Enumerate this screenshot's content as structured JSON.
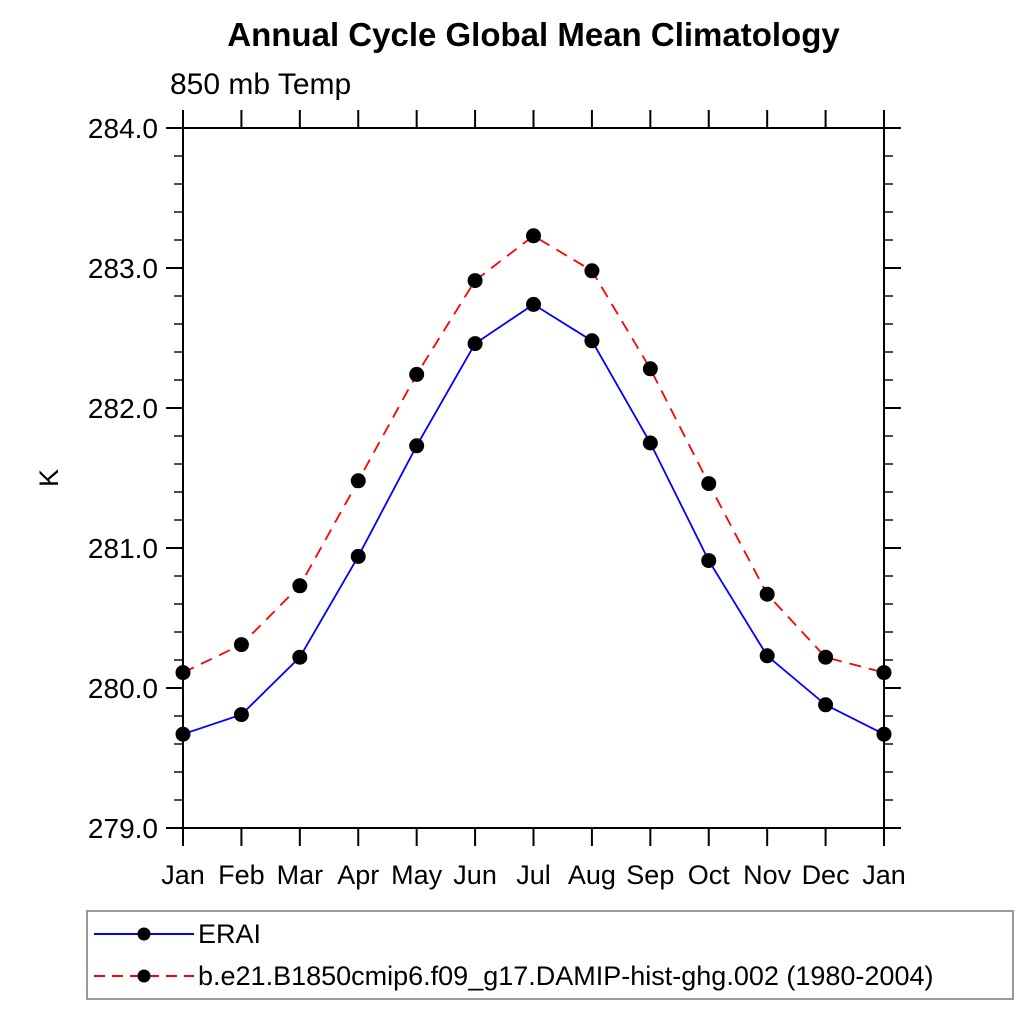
{
  "chart": {
    "title": "Annual Cycle Global Mean Climatology",
    "subtitle": "850 mb Temp"
  },
  "chart_data": {
    "type": "line",
    "title": "Annual Cycle Global Mean Climatology",
    "subtitle": "850 mb Temp",
    "xlabel": "",
    "ylabel": "K",
    "ylim": [
      279.0,
      284.0
    ],
    "y_major_tick_step": 1.0,
    "y_minor_tick_step": 0.2,
    "y_tick_labels": [
      "284.0",
      "283.0",
      "282.0",
      "281.0",
      "280.0",
      "279.0"
    ],
    "categories": [
      "Jan",
      "Feb",
      "Mar",
      "Apr",
      "May",
      "Jun",
      "Jul",
      "Aug",
      "Sep",
      "Oct",
      "Nov",
      "Dec",
      "Jan"
    ],
    "grid": false,
    "legend_position": "bottom-left-box",
    "marker": "filled-circle",
    "marker_color": "#000000",
    "frame_color": "#000000",
    "legend_border_color": "#999999",
    "series": [
      {
        "name": "ERAI",
        "color": "#0000ff",
        "line_style": "solid",
        "values": [
          279.67,
          279.81,
          280.22,
          280.94,
          281.73,
          282.46,
          282.74,
          282.48,
          281.75,
          280.91,
          280.23,
          279.88,
          279.67
        ]
      },
      {
        "name": "b.e21.B1850cmip6.f09_g17.DAMIP-hist-ghg.002 (1980-2004)",
        "color": "#ff0000",
        "line_style": "dashed",
        "values": [
          280.11,
          280.31,
          280.73,
          281.48,
          282.24,
          282.91,
          283.23,
          282.98,
          282.28,
          281.46,
          280.67,
          280.22,
          280.11
        ]
      }
    ]
  }
}
